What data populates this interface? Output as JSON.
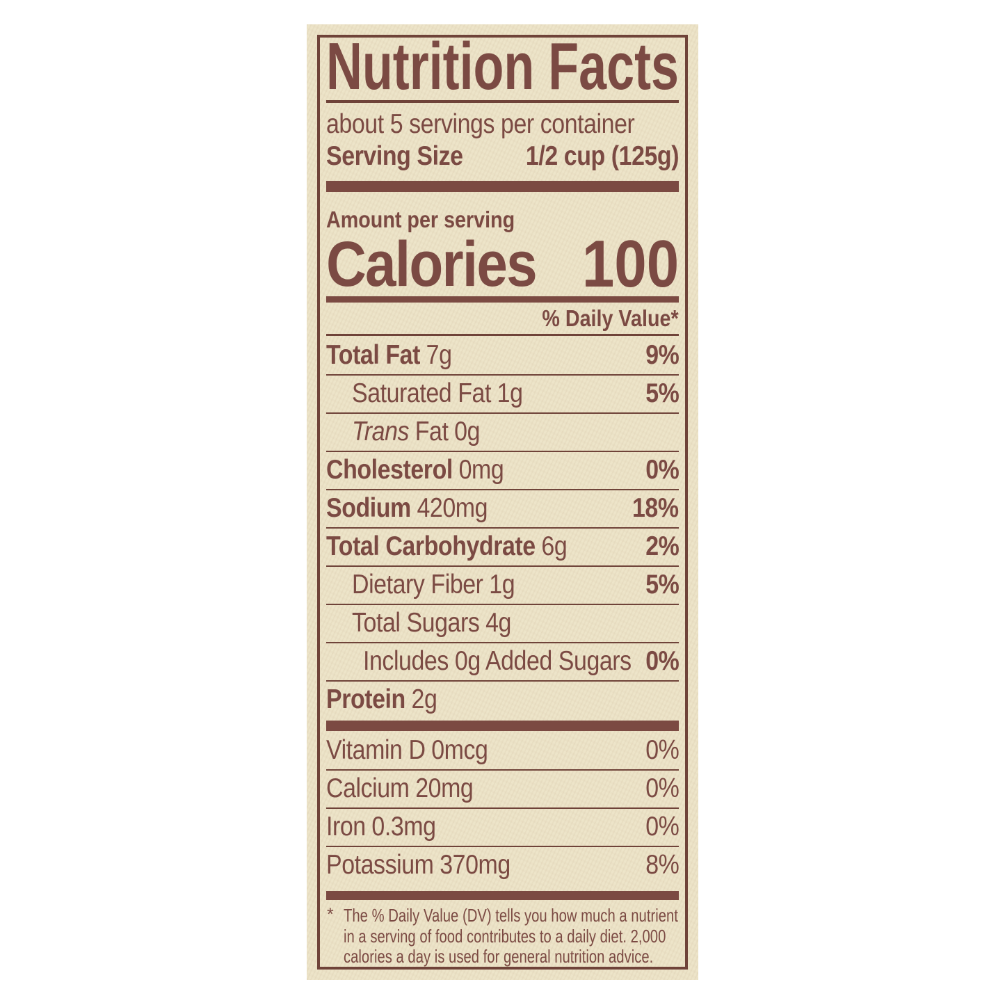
{
  "colors": {
    "ink": "#7b4a43",
    "rule": "#6f4339",
    "paper": "#ece3c6",
    "page_bg": "#ffffff"
  },
  "label": {
    "title": "Nutrition Facts",
    "servings_per_container": "about 5 servings per container",
    "serving_size": {
      "label": "Serving Size",
      "value": "1/2 cup (125g)"
    },
    "amount_per_serving": "Amount per serving",
    "calories": {
      "label": "Calories",
      "value": "100"
    },
    "daily_value_header": "% Daily Value*",
    "nutrient_rows": [
      {
        "name": "Total Fat",
        "amount": "7g",
        "dv": "9%",
        "indent": 0,
        "bold": true
      },
      {
        "name": "Saturated Fat",
        "amount": "1g",
        "dv": "5%",
        "indent": 1,
        "bold": false
      },
      {
        "name_italic": "Trans",
        "name": "Fat",
        "amount": "0g",
        "dv": "",
        "indent": 1,
        "bold": false
      },
      {
        "name": "Cholesterol",
        "amount": "0mg",
        "dv": "0%",
        "indent": 0,
        "bold": true
      },
      {
        "name": "Sodium",
        "amount": "420mg",
        "dv": "18%",
        "indent": 0,
        "bold": true
      },
      {
        "name": "Total Carbohydrate",
        "amount": "6g",
        "dv": "2%",
        "indent": 0,
        "bold": true
      },
      {
        "name": "Dietary Fiber",
        "amount": "1g",
        "dv": "5%",
        "indent": 1,
        "bold": false
      },
      {
        "name": "Total Sugars",
        "amount": "4g",
        "dv": "",
        "indent": 1,
        "bold": false
      },
      {
        "name": "Includes 0g Added Sugars",
        "amount": "",
        "dv": "0%",
        "indent": 2,
        "bold": false
      },
      {
        "name": "Protein",
        "amount": "2g",
        "dv": "",
        "indent": 0,
        "bold": true
      }
    ],
    "micronutrient_rows": [
      {
        "name": "Vitamin D",
        "amount": "0mcg",
        "dv": "0%"
      },
      {
        "name": "Calcium",
        "amount": "20mg",
        "dv": "0%"
      },
      {
        "name": "Iron",
        "amount": "0.3mg",
        "dv": "0%"
      },
      {
        "name": "Potassium",
        "amount": "370mg",
        "dv": "8%"
      }
    ],
    "footnote_marker": "*",
    "footnote_lines": [
      "The % Daily Value (DV) tells you how much a nutrient",
      "in a serving of food contributes to a daily diet. 2,000",
      "calories a day is used for general nutrition advice."
    ]
  }
}
